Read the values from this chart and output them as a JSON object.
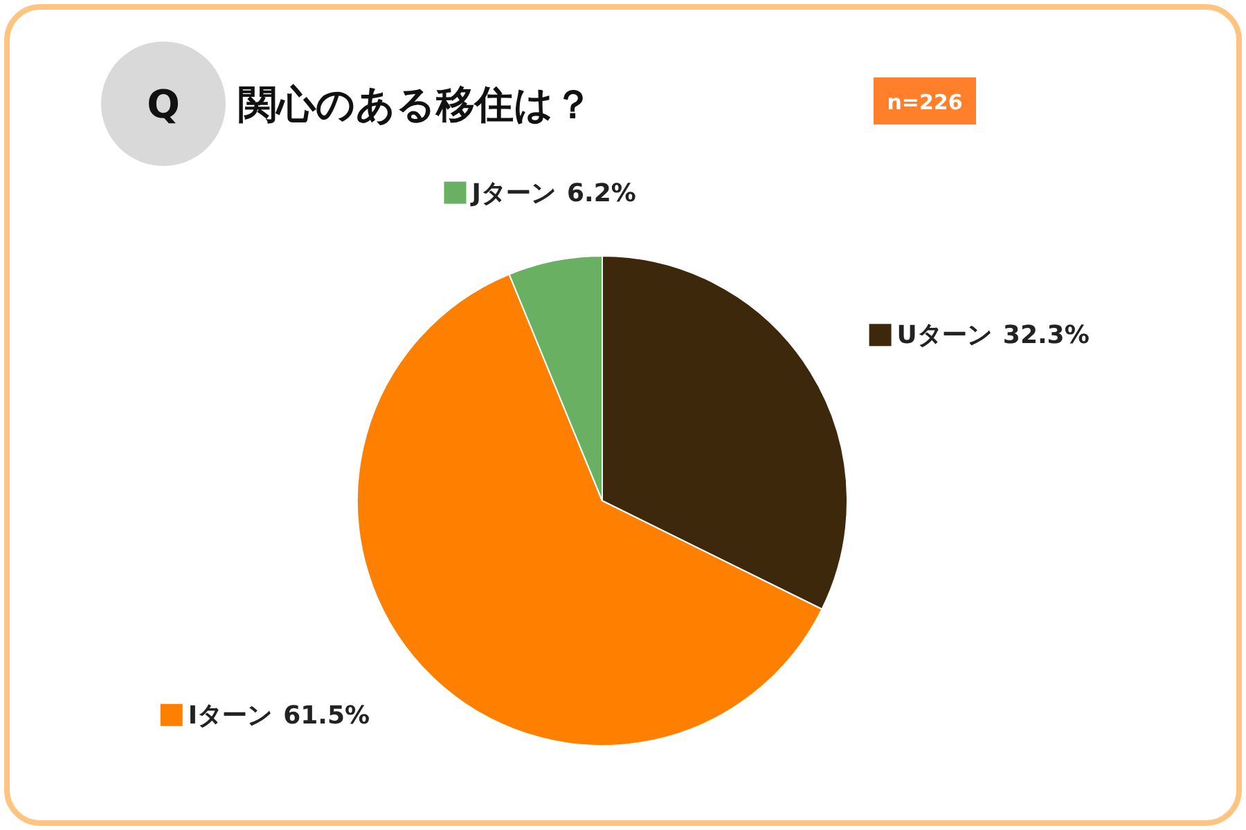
{
  "chart_data": {
    "type": "pie",
    "title": "関心のある移住は？",
    "annotations": [
      "Q",
      "n=226"
    ],
    "categories": [
      "Uターン",
      "Iターン",
      "Jターン"
    ],
    "values": [
      32.3,
      61.5,
      6.2
    ],
    "colors": [
      "#3d280c",
      "#ff8000",
      "#6ab063"
    ],
    "value_labels": [
      "32.3%",
      "61.5%",
      "6.2%"
    ],
    "legend": "top left"
  }
}
